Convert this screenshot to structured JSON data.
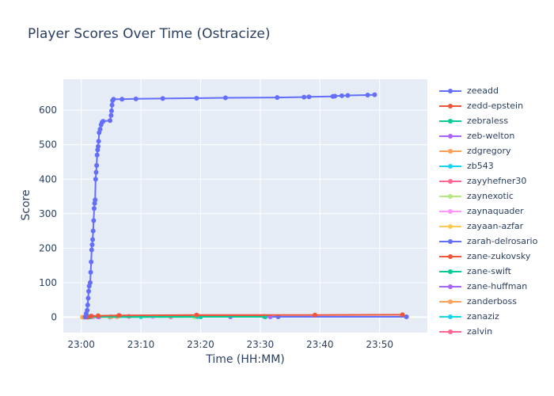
{
  "chart_data": {
    "type": "line",
    "title": "Player Scores Over Time (Ostracize)",
    "xlabel": "Time (HH:MM)",
    "ylabel": "Score",
    "x_ticks": [
      "23:00",
      "23:10",
      "23:20",
      "23:30",
      "23:40",
      "23:50"
    ],
    "y_ticks": [
      0,
      100,
      200,
      300,
      400,
      500,
      600
    ],
    "xlim": [
      "22:57:00",
      "23:58:00"
    ],
    "ylim": [
      -45,
      690
    ],
    "grid": true,
    "legend_position": "right",
    "series": [
      {
        "name": "zeeadd",
        "color": "#636efa",
        "points": [
          [
            "23:00:40",
            0
          ],
          [
            "23:00:50",
            10
          ],
          [
            "23:01:00",
            20
          ],
          [
            "23:01:05",
            35
          ],
          [
            "23:01:10",
            55
          ],
          [
            "23:01:15",
            75
          ],
          [
            "23:01:20",
            90
          ],
          [
            "23:01:30",
            100
          ],
          [
            "23:01:35",
            130
          ],
          [
            "23:01:40",
            160
          ],
          [
            "23:01:45",
            195
          ],
          [
            "23:01:50",
            210
          ],
          [
            "23:01:55",
            225
          ],
          [
            "23:02:00",
            250
          ],
          [
            "23:02:05",
            280
          ],
          [
            "23:02:10",
            315
          ],
          [
            "23:02:15",
            330
          ],
          [
            "23:02:20",
            340
          ],
          [
            "23:02:25",
            400
          ],
          [
            "23:02:30",
            420
          ],
          [
            "23:02:35",
            440
          ],
          [
            "23:02:40",
            470
          ],
          [
            "23:02:45",
            485
          ],
          [
            "23:02:50",
            495
          ],
          [
            "23:02:55",
            510
          ],
          [
            "23:03:00",
            535
          ],
          [
            "23:03:10",
            545
          ],
          [
            "23:03:20",
            558
          ],
          [
            "23:03:30",
            565
          ],
          [
            "23:03:40",
            568
          ],
          [
            "23:04:50",
            570
          ],
          [
            "23:05:00",
            585
          ],
          [
            "23:05:05",
            598
          ],
          [
            "23:05:10",
            615
          ],
          [
            "23:05:15",
            628
          ],
          [
            "23:05:25",
            632
          ],
          [
            "23:06:50",
            632
          ],
          [
            "23:09:10",
            633
          ],
          [
            "23:13:40",
            634
          ],
          [
            "23:19:20",
            635
          ],
          [
            "23:24:10",
            636
          ],
          [
            "23:32:50",
            637
          ],
          [
            "23:37:20",
            638
          ],
          [
            "23:38:10",
            639
          ],
          [
            "23:42:10",
            640
          ],
          [
            "23:42:30",
            641
          ],
          [
            "23:43:40",
            642
          ],
          [
            "23:44:40",
            643
          ],
          [
            "23:48:00",
            644
          ],
          [
            "23:49:10",
            645
          ]
        ]
      },
      {
        "name": "zedd-epstein",
        "color": "#ef553b",
        "points": [
          [
            "23:01:00",
            0
          ],
          [
            "23:01:40",
            3
          ],
          [
            "23:02:50",
            4
          ],
          [
            "23:06:20",
            5
          ],
          [
            "23:19:20",
            6
          ],
          [
            "23:39:10",
            6
          ],
          [
            "23:53:50",
            7
          ]
        ]
      },
      {
        "name": "zebraless",
        "color": "#00cc96",
        "points": [
          [
            "23:01:20",
            1
          ],
          [
            "23:30:50",
            1
          ]
        ]
      },
      {
        "name": "zeb-welton",
        "color": "#ab63fa",
        "points": [
          [
            "23:02:50",
            1
          ],
          [
            "23:31:40",
            1
          ]
        ]
      },
      {
        "name": "zdgregory",
        "color": "#ffa15a",
        "points": [
          [
            "23:00:20",
            0
          ],
          [
            "23:05:00",
            1
          ]
        ]
      },
      {
        "name": "zb543",
        "color": "#19d3f3",
        "points": [
          [
            "23:04:50",
            0
          ],
          [
            "23:19:30",
            1
          ]
        ]
      },
      {
        "name": "zayyhefner30",
        "color": "#ff6692",
        "points": [
          [
            "23:01:10",
            0
          ],
          [
            "23:08:00",
            2
          ]
        ]
      },
      {
        "name": "zaynexotic",
        "color": "#b6e880",
        "points": [
          [
            "23:00:30",
            0
          ],
          [
            "23:19:00",
            0
          ]
        ]
      },
      {
        "name": "zaynaquader",
        "color": "#ff97ff",
        "points": [
          [
            "23:02:00",
            1
          ],
          [
            "23:12:00",
            1
          ]
        ]
      },
      {
        "name": "zayaan-azfar",
        "color": "#fecb52",
        "points": [
          [
            "23:00:10",
            0
          ],
          [
            "23:01:00",
            0
          ]
        ]
      },
      {
        "name": "zarah-delrosario",
        "color": "#636efa",
        "points": [
          [
            "23:05:00",
            1
          ],
          [
            "23:33:00",
            1
          ],
          [
            "23:54:30",
            1
          ]
        ]
      },
      {
        "name": "zane-zukovsky",
        "color": "#ef553b",
        "points": [
          [
            "23:01:50",
            2
          ],
          [
            "23:30:40",
            2
          ]
        ]
      },
      {
        "name": "zane-swift",
        "color": "#00cc96",
        "points": [
          [
            "23:01:30",
            1
          ],
          [
            "23:20:00",
            1
          ]
        ]
      },
      {
        "name": "zane-huffman",
        "color": "#ab63fa",
        "points": [
          [
            "23:03:00",
            1
          ],
          [
            "23:25:00",
            1
          ]
        ]
      },
      {
        "name": "zanderboss",
        "color": "#ffa15a",
        "points": [
          [
            "23:01:00",
            0
          ],
          [
            "23:06:00",
            1
          ]
        ]
      },
      {
        "name": "zanaziz",
        "color": "#19d3f3",
        "points": [
          [
            "23:02:00",
            0
          ],
          [
            "23:10:00",
            1
          ]
        ]
      },
      {
        "name": "zalvin",
        "color": "#ff6692",
        "points": [
          [
            "23:01:40",
            1
          ],
          [
            "23:15:00",
            1
          ]
        ]
      }
    ]
  }
}
